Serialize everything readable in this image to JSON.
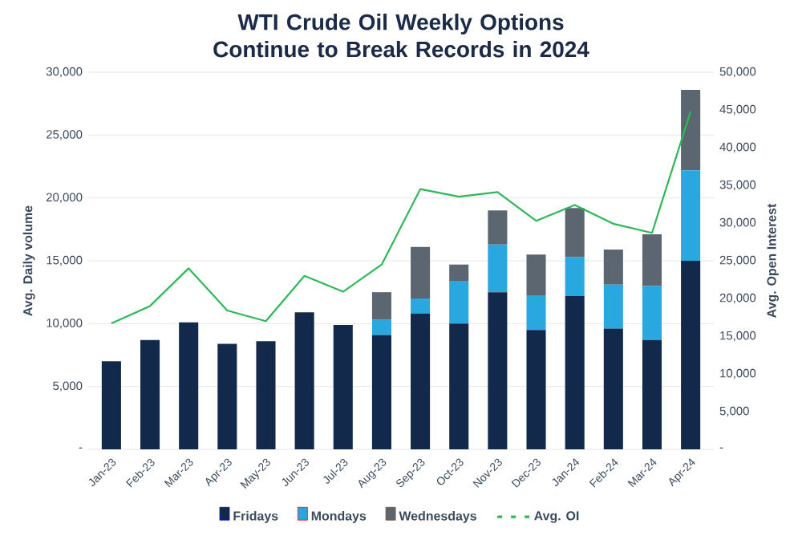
{
  "chart_data": {
    "type": "bar",
    "title": "WTI Crude Oil Weekly Options Continue to Break Records in 2024",
    "ylabel": "Avg. Daily volume",
    "y2label": "Avg. Open Interest",
    "categories": [
      "Jan-23",
      "Feb-23",
      "Mar-23",
      "Apr-23",
      "May-23",
      "Jun-23",
      "Jul-23",
      "Aug-23",
      "Sep-23",
      "Oct-23",
      "Nov-23",
      "Dec-23",
      "Jan-24",
      "Feb-24",
      "Mar-24",
      "Apr-24"
    ],
    "stacked": true,
    "series": [
      {
        "name": "Fridays",
        "color": "#13294b",
        "values": [
          7000,
          8700,
          10100,
          8400,
          8600,
          10900,
          9900,
          9100,
          10800,
          10000,
          12500,
          9500,
          12200,
          9600,
          8700,
          15000
        ]
      },
      {
        "name": "Mondays",
        "color": "#29a8e0",
        "values": [
          0,
          0,
          0,
          0,
          0,
          0,
          0,
          1200,
          1200,
          3400,
          3800,
          2700,
          3100,
          3500,
          4300,
          7200
        ]
      },
      {
        "name": "Wednesdays",
        "color": "#5b6670",
        "values": [
          0,
          0,
          0,
          0,
          0,
          0,
          0,
          2200,
          4100,
          1300,
          2700,
          3300,
          3900,
          2800,
          4100,
          6400
        ]
      },
      {
        "name": "Avg. OI",
        "color": "#2eb857",
        "type": "line",
        "axis": "y2",
        "values": [
          16700,
          19000,
          24000,
          18400,
          17000,
          23000,
          20900,
          24500,
          34500,
          33500,
          34100,
          30300,
          32400,
          29900,
          28700,
          44800
        ]
      }
    ],
    "ylim": [
      0,
      30000
    ],
    "yticks": [
      {
        "value": 0,
        "label": "-"
      },
      {
        "value": 5000,
        "label": "5,000"
      },
      {
        "value": 10000,
        "label": "10,000"
      },
      {
        "value": 15000,
        "label": "15,000"
      },
      {
        "value": 20000,
        "label": "20,000"
      },
      {
        "value": 25000,
        "label": "25,000"
      },
      {
        "value": 30000,
        "label": "30,000"
      }
    ],
    "y2lim": [
      0,
      50000
    ],
    "y2ticks": [
      {
        "value": 0,
        "label": "-"
      },
      {
        "value": 5000,
        "label": "5,000"
      },
      {
        "value": 10000,
        "label": "10,000"
      },
      {
        "value": 15000,
        "label": "15,000"
      },
      {
        "value": 20000,
        "label": "20,000"
      },
      {
        "value": 25000,
        "label": "25,000"
      },
      {
        "value": 30000,
        "label": "30,000"
      },
      {
        "value": 35000,
        "label": "35,000"
      },
      {
        "value": 40000,
        "label": "40,000"
      },
      {
        "value": 45000,
        "label": "45,000"
      },
      {
        "value": 50000,
        "label": "50,000"
      }
    ],
    "grid": "y",
    "legend": "bottom"
  }
}
